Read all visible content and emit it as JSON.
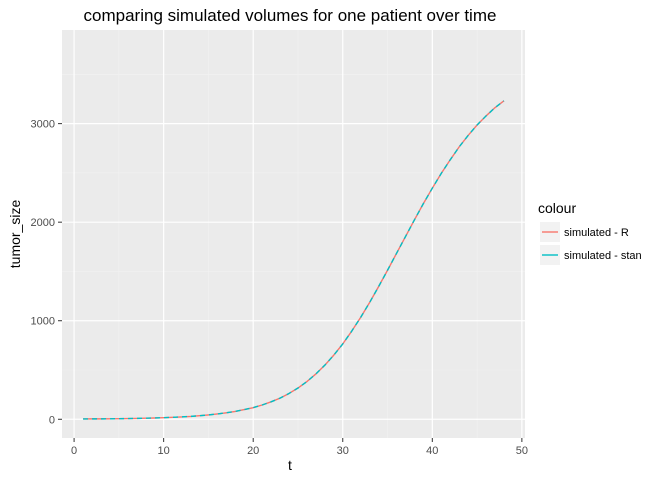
{
  "chart_data": {
    "type": "line",
    "title": "comparing simulated volumes for one patient over time",
    "xlabel": "t",
    "ylabel": "tumor_size",
    "xlim": [
      -1.35,
      50.35
    ],
    "ylim": [
      -190,
      3950
    ],
    "x_ticks": [
      0,
      10,
      20,
      30,
      40,
      50
    ],
    "y_ticks": [
      0,
      1000,
      2000,
      3000
    ],
    "x_tick_labels": [
      "0",
      "10",
      "20",
      "30",
      "40",
      "50"
    ],
    "y_tick_labels": [
      "0",
      "1000",
      "2000",
      "3000"
    ],
    "grid": true,
    "legend": {
      "title": "colour",
      "position": "right"
    },
    "x": [
      1,
      2,
      3,
      4,
      5,
      6,
      7,
      8,
      9,
      10,
      11,
      12,
      13,
      14,
      15,
      16,
      17,
      18,
      19,
      20,
      21,
      22,
      23,
      24,
      25,
      26,
      27,
      28,
      29,
      30,
      31,
      32,
      33,
      34,
      35,
      36,
      37,
      38,
      39,
      40,
      41,
      42,
      43,
      44,
      45,
      46,
      47,
      48
    ],
    "series": [
      {
        "name": "simulated - R",
        "color": "#F8766D",
        "dash": "solid",
        "values": [
          3,
          4,
          4,
          5,
          6,
          7,
          9,
          11,
          13,
          16,
          20,
          24,
          29,
          36,
          44,
          54,
          66,
          80,
          98,
          118,
          145,
          177,
          215,
          262,
          317,
          383,
          460,
          549,
          651,
          765,
          894,
          1034,
          1185,
          1346,
          1512,
          1683,
          1853,
          2023,
          2188,
          2345,
          2495,
          2633,
          2764,
          2880,
          2986,
          3078,
          3162,
          3232
        ]
      },
      {
        "name": "simulated - stan",
        "color": "#00BFC4",
        "dash": "dashed",
        "values": [
          3,
          4,
          4,
          5,
          6,
          7,
          9,
          11,
          13,
          16,
          20,
          24,
          29,
          36,
          44,
          54,
          66,
          80,
          98,
          118,
          145,
          177,
          215,
          262,
          317,
          383,
          460,
          549,
          651,
          765,
          894,
          1034,
          1185,
          1346,
          1512,
          1683,
          1853,
          2023,
          2188,
          2345,
          2495,
          2633,
          2764,
          2880,
          2986,
          3078,
          3162,
          3232
        ]
      }
    ]
  }
}
